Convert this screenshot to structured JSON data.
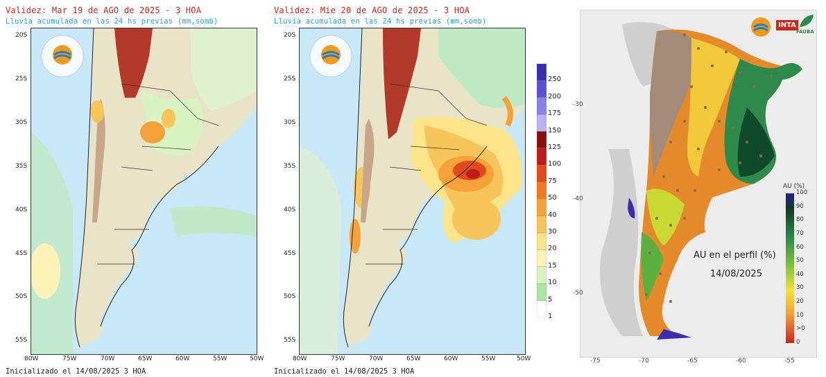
{
  "left_panel": {
    "validity": "Validez: Mar 19 de AGO de 2025 - 3 HOA",
    "subtitle": "Lluvia acumulada en las 24 hs previas (mm,somb)",
    "init": "Inicializado el 14/08/2025 3 HOA",
    "lat_ticks": [
      "20S",
      "25S",
      "30S",
      "35S",
      "40S",
      "45S",
      "50S",
      "55S"
    ],
    "lon_ticks": [
      "80W",
      "75W",
      "70W",
      "65W",
      "60W",
      "55W",
      "50W"
    ]
  },
  "mid_panel": {
    "validity": "Validez: Mie 20 de AGO de 2025 - 3 HOA",
    "subtitle": "Lluvia acumulada en las 24 hs previas (mm,somb)",
    "init": "Inicializado el 14/08/2025 3 HOA",
    "lat_ticks": [
      "20S",
      "25S",
      "30S",
      "35S",
      "40S",
      "45S",
      "50S",
      "55S"
    ],
    "lon_ticks": [
      "80W",
      "75W",
      "70W",
      "65W",
      "60W",
      "55W",
      "50W"
    ]
  },
  "rain_legend": {
    "labels": [
      "250",
      "200",
      "175",
      "150",
      "125",
      "100",
      "75",
      "50",
      "40",
      "30",
      "20",
      "15",
      "10",
      "5",
      "1"
    ],
    "colors": [
      "#3a2db0",
      "#5a50d0",
      "#8a80e8",
      "#b9b3f3",
      "#8a0f0f",
      "#c01c1c",
      "#e24a1c",
      "#f07a1e",
      "#f5a23a",
      "#f8c55a",
      "#fbe48a",
      "#fdf3b8",
      "#d9f3c2",
      "#a9e6a0",
      "#ffffff"
    ]
  },
  "au_map": {
    "title": "AU en el perfil (%)",
    "date": "14/08/2025",
    "legend_title": "AU (%)",
    "legend_labels": [
      "100",
      "90",
      "80",
      "70",
      "60",
      "50",
      "40",
      "30",
      "20",
      "10",
      ">0",
      "0"
    ],
    "lat_ticks": [
      "-30",
      "-40",
      "-50"
    ],
    "lon_ticks": [
      "-75",
      "-70",
      "-65",
      "-60",
      "-55"
    ],
    "logos": [
      "INTA",
      "FAUBA"
    ]
  }
}
